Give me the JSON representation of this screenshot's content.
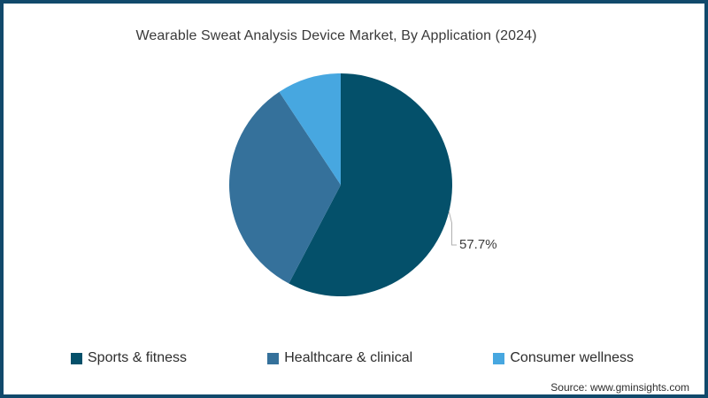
{
  "page": {
    "border_color": "#11496b",
    "background_color": "#ffffff"
  },
  "chart_data": {
    "type": "pie",
    "title": "Wearable Sweat Analysis Device Market, By Application (2024)",
    "slices": [
      {
        "label": "Sports & fitness",
        "value": 57.7,
        "color": "#04506a",
        "data_label": "57.7%"
      },
      {
        "label": "Healthcare & clinical",
        "value": 33.0,
        "color": "#35719b",
        "data_label": ""
      },
      {
        "label": "Consumer wellness",
        "value": 9.3,
        "color": "#47a7e0",
        "data_label": ""
      }
    ],
    "values_unit": "%",
    "start_angle": "top",
    "direction": "clockwise",
    "legend_position": "bottom",
    "leader_line_color": "#b0b0b0",
    "label_text_color": "#3d3d3d"
  },
  "footer": {
    "source": "Source: www.gminsights.com"
  }
}
